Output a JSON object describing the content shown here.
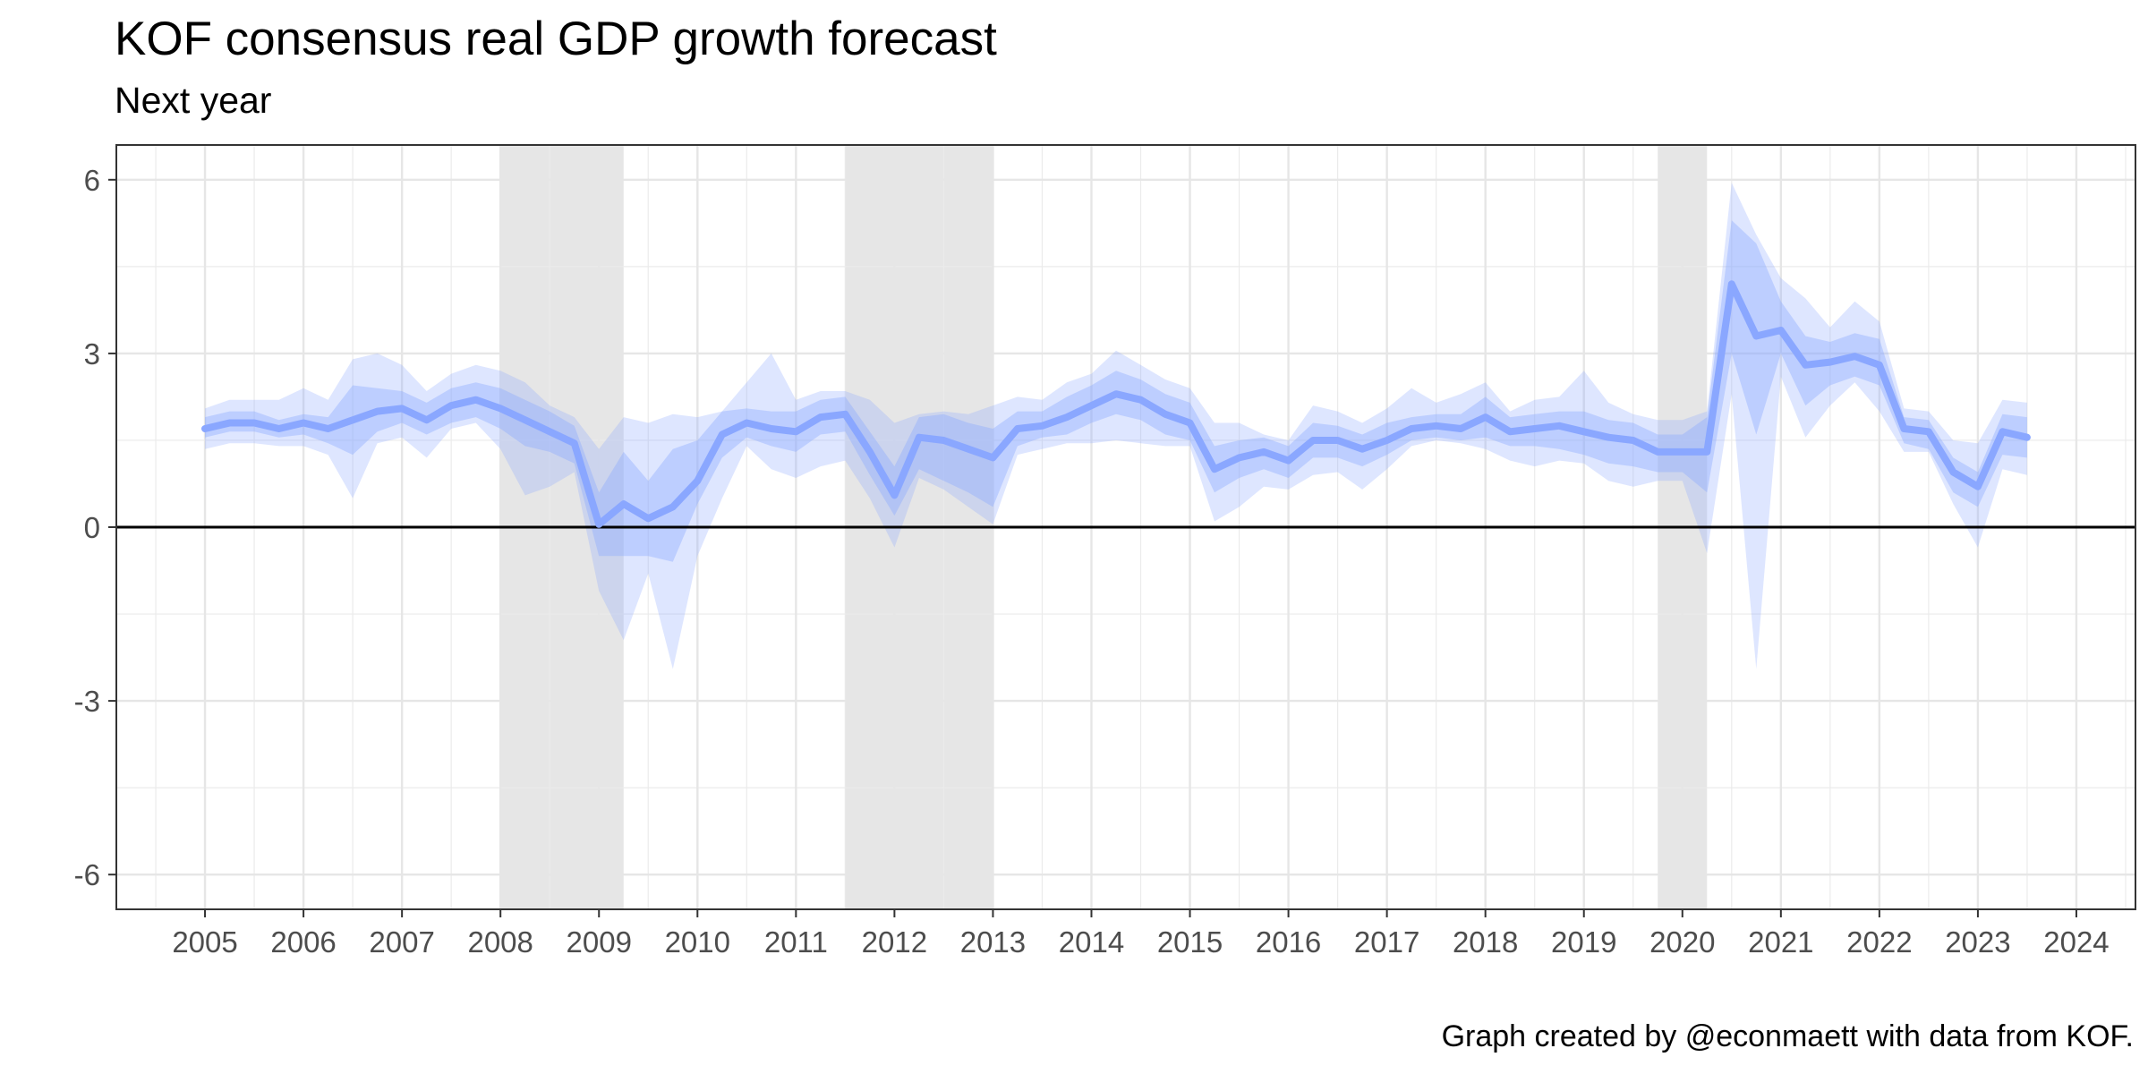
{
  "chart_data": {
    "type": "line",
    "title": "KOF consensus real GDP growth forecast",
    "subtitle": "Next year",
    "caption": "Graph created by @econmaett with data from KOF.",
    "xlabel": "",
    "ylabel": "",
    "xlim": [
      2004.1,
      2024.6
    ],
    "ylim": [
      -6.6,
      6.6
    ],
    "x_ticks": [
      2005,
      2006,
      2007,
      2008,
      2009,
      2010,
      2011,
      2012,
      2013,
      2014,
      2015,
      2016,
      2017,
      2018,
      2019,
      2020,
      2021,
      2022,
      2023,
      2024
    ],
    "y_ticks": [
      -6,
      -3,
      0,
      3,
      6
    ],
    "grid": true,
    "legend": "none",
    "zero_line": 0,
    "recessions": [
      [
        2008.0,
        2009.25
      ],
      [
        2011.5,
        2013.0
      ],
      [
        2019.75,
        2020.25
      ]
    ],
    "colors": {
      "median_line": "#8aa7ff",
      "inner_band": "#8aa7ff",
      "outer_band": "#8aa7ff",
      "recession": "#e6e6e6",
      "zero_line": "#000000"
    },
    "x": [
      2005.0,
      2005.25,
      2005.5,
      2005.75,
      2006.0,
      2006.25,
      2006.5,
      2006.75,
      2007.0,
      2007.25,
      2007.5,
      2007.75,
      2008.0,
      2008.25,
      2008.5,
      2008.75,
      2009.0,
      2009.25,
      2009.5,
      2009.75,
      2010.0,
      2010.25,
      2010.5,
      2010.75,
      2011.0,
      2011.25,
      2011.5,
      2011.75,
      2012.0,
      2012.25,
      2012.5,
      2012.75,
      2013.0,
      2013.25,
      2013.5,
      2013.75,
      2014.0,
      2014.25,
      2014.5,
      2014.75,
      2015.0,
      2015.25,
      2015.5,
      2015.75,
      2016.0,
      2016.25,
      2016.5,
      2016.75,
      2017.0,
      2017.25,
      2017.5,
      2017.75,
      2018.0,
      2018.25,
      2018.5,
      2018.75,
      2019.0,
      2019.25,
      2019.5,
      2019.75,
      2020.0,
      2020.25,
      2020.5,
      2020.75,
      2021.0,
      2021.25,
      2021.5,
      2021.75,
      2022.0,
      2022.25,
      2022.5,
      2022.75,
      2023.0,
      2023.25,
      2023.5
    ],
    "series": [
      {
        "role": "median",
        "values": [
          1.7,
          1.8,
          1.8,
          1.7,
          1.8,
          1.7,
          1.85,
          2.0,
          2.05,
          1.85,
          2.1,
          2.2,
          2.05,
          1.85,
          1.65,
          1.45,
          0.05,
          0.4,
          0.15,
          0.35,
          0.8,
          1.6,
          1.8,
          1.7,
          1.65,
          1.9,
          1.95,
          1.3,
          0.55,
          1.55,
          1.5,
          1.35,
          1.2,
          1.7,
          1.75,
          1.9,
          2.1,
          2.3,
          2.2,
          1.95,
          1.8,
          1.0,
          1.2,
          1.3,
          1.15,
          1.5,
          1.5,
          1.35,
          1.5,
          1.7,
          1.75,
          1.7,
          1.9,
          1.65,
          1.7,
          1.75,
          1.65,
          1.55,
          1.5,
          1.3,
          1.3,
          1.3,
          4.2,
          3.3,
          3.4,
          2.8,
          2.85,
          2.95,
          2.8,
          1.7,
          1.65,
          0.95,
          0.7,
          1.65,
          1.55
        ]
      },
      {
        "role": "inner-band-low",
        "values": [
          1.55,
          1.65,
          1.65,
          1.55,
          1.6,
          1.45,
          1.25,
          1.65,
          1.8,
          1.6,
          1.8,
          1.9,
          1.7,
          1.4,
          1.3,
          1.1,
          -0.5,
          -0.5,
          -0.5,
          -0.6,
          0.4,
          1.2,
          1.55,
          1.4,
          1.3,
          1.6,
          1.65,
          0.9,
          0.2,
          1.0,
          0.8,
          0.6,
          0.35,
          1.4,
          1.55,
          1.6,
          1.8,
          1.95,
          1.85,
          1.6,
          1.5,
          0.6,
          0.85,
          1.0,
          0.85,
          1.2,
          1.2,
          1.05,
          1.25,
          1.5,
          1.55,
          1.5,
          1.55,
          1.4,
          1.4,
          1.35,
          1.25,
          1.1,
          1.05,
          0.95,
          0.95,
          0.6,
          3.0,
          1.6,
          3.0,
          2.1,
          2.45,
          2.6,
          2.45,
          1.45,
          1.35,
          0.6,
          0.35,
          1.25,
          1.2
        ]
      },
      {
        "role": "inner-band-high",
        "values": [
          1.9,
          2.0,
          2.0,
          1.85,
          1.95,
          1.9,
          2.45,
          2.4,
          2.35,
          2.15,
          2.4,
          2.5,
          2.4,
          2.2,
          2.0,
          1.75,
          0.6,
          1.3,
          0.8,
          1.35,
          1.5,
          2.0,
          2.05,
          2.0,
          2.0,
          2.2,
          2.25,
          1.65,
          1.05,
          1.9,
          1.95,
          1.8,
          1.7,
          2.0,
          2.0,
          2.25,
          2.45,
          2.7,
          2.55,
          2.3,
          2.15,
          1.4,
          1.5,
          1.55,
          1.4,
          1.8,
          1.75,
          1.6,
          1.8,
          1.9,
          1.95,
          1.95,
          2.25,
          1.9,
          1.95,
          2.0,
          2.0,
          1.85,
          1.8,
          1.6,
          1.6,
          1.9,
          5.3,
          4.9,
          3.9,
          3.3,
          3.2,
          3.35,
          3.25,
          1.9,
          1.85,
          1.2,
          0.95,
          1.95,
          1.9
        ]
      },
      {
        "role": "outer-band-low",
        "values": [
          1.35,
          1.45,
          1.45,
          1.4,
          1.4,
          1.25,
          0.5,
          1.45,
          1.55,
          1.2,
          1.7,
          1.8,
          1.35,
          0.55,
          0.7,
          0.95,
          -1.1,
          -1.95,
          -0.8,
          -2.45,
          -0.5,
          0.5,
          1.4,
          1.0,
          0.85,
          1.05,
          1.15,
          0.5,
          -0.35,
          0.85,
          0.65,
          0.35,
          0.05,
          1.25,
          1.35,
          1.45,
          1.45,
          1.5,
          1.45,
          1.4,
          1.4,
          0.1,
          0.35,
          0.7,
          0.65,
          0.9,
          0.95,
          0.65,
          1.0,
          1.4,
          1.5,
          1.45,
          1.35,
          1.15,
          1.05,
          1.15,
          1.1,
          0.8,
          0.7,
          0.8,
          0.8,
          -0.45,
          2.3,
          -2.45,
          2.6,
          1.55,
          2.1,
          2.5,
          2.0,
          1.3,
          1.3,
          0.4,
          -0.35,
          1.0,
          0.9
        ]
      },
      {
        "role": "outer-band-high",
        "values": [
          2.05,
          2.2,
          2.2,
          2.2,
          2.4,
          2.2,
          2.9,
          3.0,
          2.8,
          2.35,
          2.65,
          2.8,
          2.7,
          2.5,
          2.1,
          1.9,
          1.35,
          1.9,
          1.8,
          1.95,
          1.9,
          2.0,
          2.5,
          3.0,
          2.2,
          2.35,
          2.35,
          2.2,
          1.8,
          1.95,
          2.0,
          1.95,
          2.1,
          2.25,
          2.2,
          2.5,
          2.65,
          3.05,
          2.8,
          2.55,
          2.4,
          1.8,
          1.8,
          1.6,
          1.5,
          2.1,
          2.0,
          1.8,
          2.05,
          2.4,
          2.15,
          2.3,
          2.5,
          2.0,
          2.2,
          2.25,
          2.7,
          2.15,
          1.95,
          1.85,
          1.85,
          2.0,
          5.95,
          5.05,
          4.3,
          3.95,
          3.45,
          3.9,
          3.55,
          2.05,
          2.0,
          1.5,
          1.45,
          2.2,
          2.15
        ]
      }
    ]
  }
}
